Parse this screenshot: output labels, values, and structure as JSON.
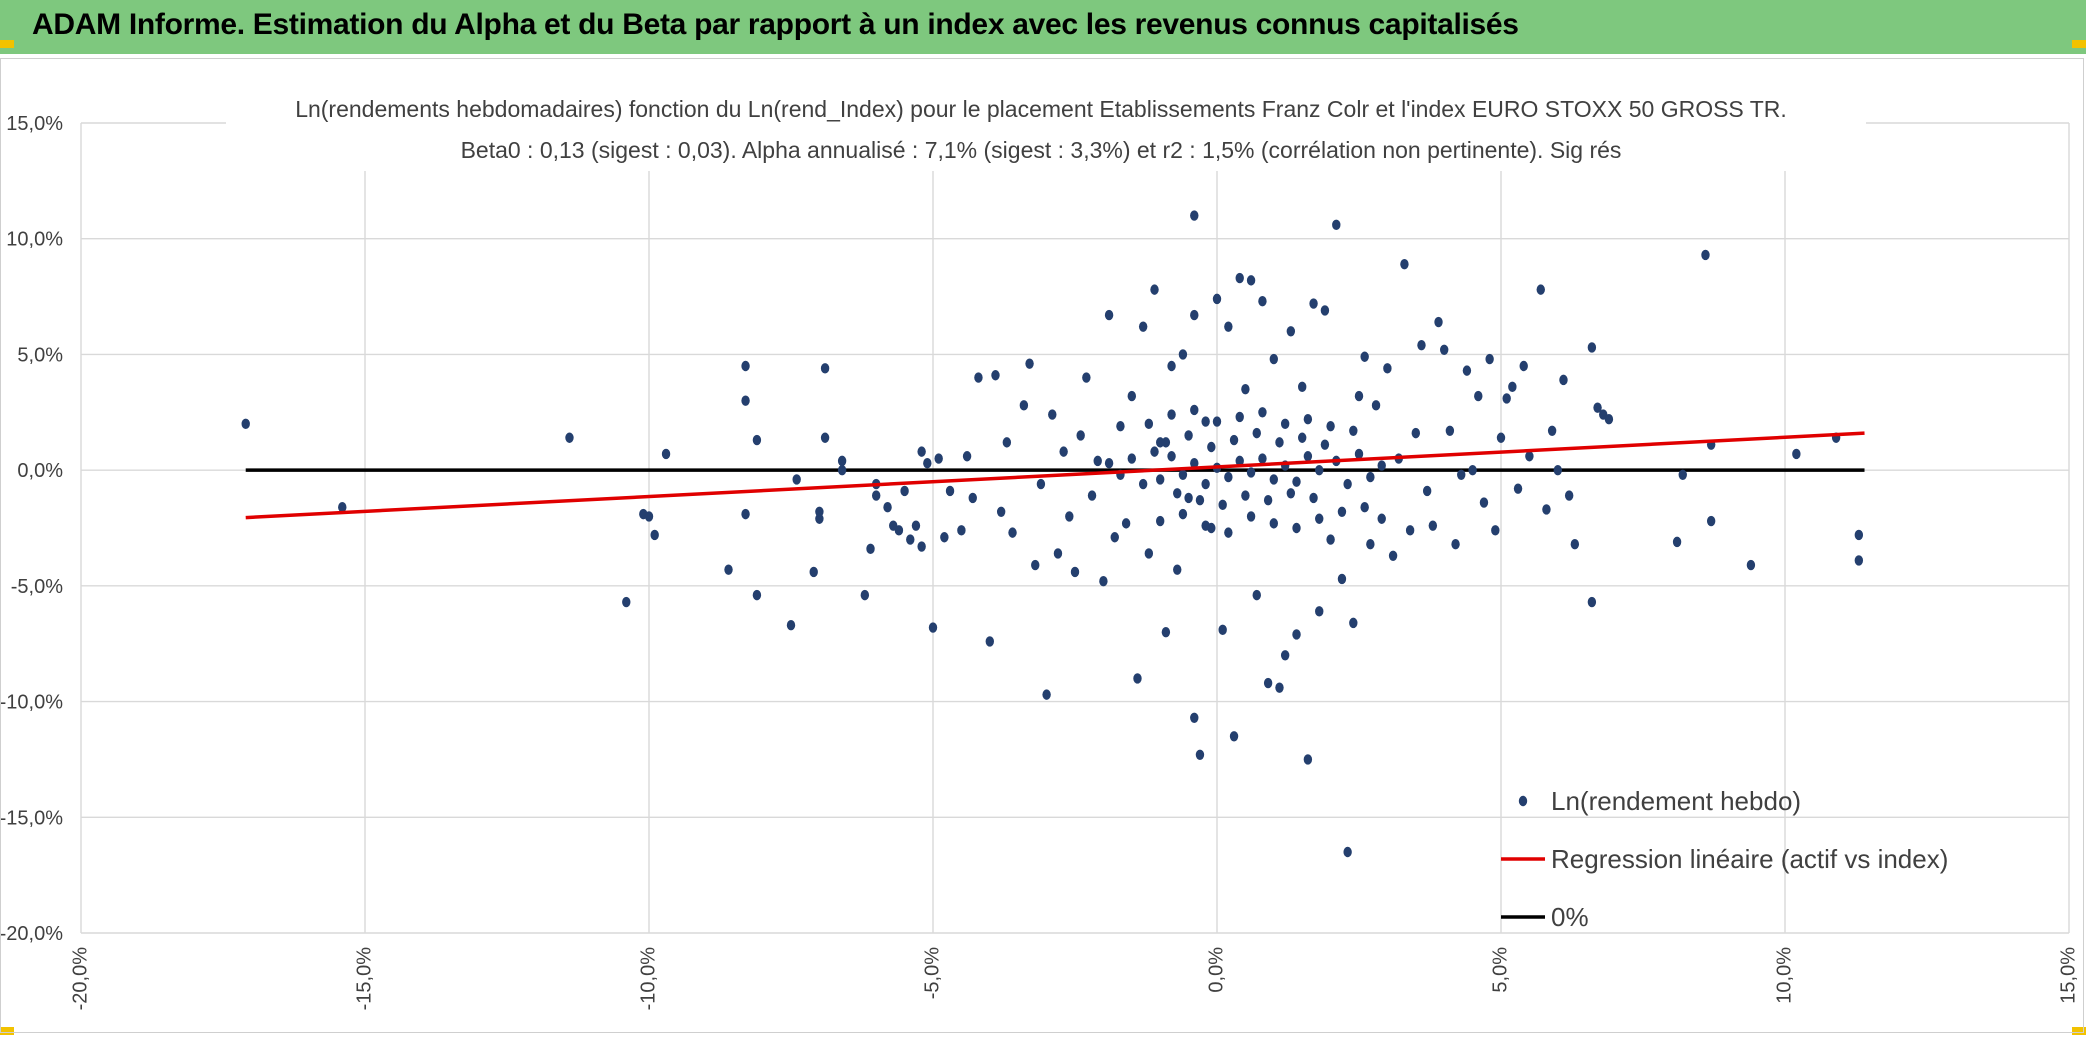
{
  "header": {
    "title": "ADAM Informe. Estimation du Alpha et du Beta par rapport à un index avec les revenus connus capitalisés"
  },
  "colors": {
    "header_bg": "#7ec87e",
    "points": "#243f6e",
    "regression": "#e00000",
    "zero_line": "#000000",
    "grid": "#d9d9d9",
    "text": "#404040"
  },
  "chart_data": {
    "type": "scatter",
    "title": "Ln(rendements hebdomadaires) fonction du Ln(rend_Index) pour le placement Etablissements Franz Colr et l'index EURO STOXX 50 GROSS TR.",
    "subtitle": "Beta0 : 0,13 (sigest : 0,03). Alpha annualisé : 7,1% (sigest : 3,3%) et r2 : 1,5% (corrélation non pertinente). Sig rés",
    "xlim": [
      -0.2,
      0.15
    ],
    "ylim": [
      -0.2,
      0.15
    ],
    "grid": true,
    "legend_position": "bottom-right",
    "x_ticks": [
      {
        "value": -0.2,
        "label": "-20,0%"
      },
      {
        "value": -0.15,
        "label": "-15,0%"
      },
      {
        "value": -0.1,
        "label": "-10,0%"
      },
      {
        "value": -0.05,
        "label": "-5,0%"
      },
      {
        "value": 0.0,
        "label": "0,0%"
      },
      {
        "value": 0.05,
        "label": "5,0%"
      },
      {
        "value": 0.1,
        "label": "10,0%"
      },
      {
        "value": 0.15,
        "label": "15,0%"
      }
    ],
    "y_ticks": [
      {
        "value": 0.15,
        "label": "15,0%"
      },
      {
        "value": 0.1,
        "label": "10,0%"
      },
      {
        "value": 0.05,
        "label": "5,0%"
      },
      {
        "value": 0.0,
        "label": "0,0%"
      },
      {
        "value": -0.05,
        "label": "-5,0%"
      },
      {
        "value": -0.1,
        "label": "-10,0%"
      },
      {
        "value": -0.15,
        "label": "-15,0%"
      },
      {
        "value": -0.2,
        "label": "-20,0%"
      }
    ],
    "series": [
      {
        "name": "Ln(rendement hebdo)",
        "kind": "points",
        "points": [
          [
            -0.171,
            0.02
          ],
          [
            -0.154,
            -0.016
          ],
          [
            -0.114,
            0.014
          ],
          [
            -0.104,
            -0.057
          ],
          [
            -0.101,
            -0.019
          ],
          [
            -0.1,
            -0.02
          ],
          [
            -0.099,
            -0.028
          ],
          [
            -0.097,
            0.007
          ],
          [
            -0.086,
            -0.043
          ],
          [
            -0.083,
            0.045
          ],
          [
            -0.083,
            0.03
          ],
          [
            -0.083,
            -0.019
          ],
          [
            -0.081,
            0.013
          ],
          [
            -0.081,
            -0.054
          ],
          [
            -0.075,
            -0.067
          ],
          [
            -0.074,
            -0.004
          ],
          [
            -0.071,
            -0.044
          ],
          [
            -0.07,
            -0.021
          ],
          [
            -0.07,
            -0.018
          ],
          [
            -0.069,
            0.044
          ],
          [
            -0.069,
            0.014
          ],
          [
            -0.066,
            0.004
          ],
          [
            -0.066,
            0.0
          ],
          [
            -0.062,
            -0.054
          ],
          [
            -0.061,
            -0.034
          ],
          [
            -0.06,
            -0.011
          ],
          [
            -0.06,
            -0.006
          ],
          [
            -0.058,
            -0.016
          ],
          [
            -0.057,
            -0.024
          ],
          [
            -0.056,
            -0.026
          ],
          [
            -0.055,
            -0.009
          ],
          [
            -0.054,
            -0.03
          ],
          [
            -0.053,
            -0.024
          ],
          [
            -0.052,
            0.008
          ],
          [
            -0.052,
            -0.033
          ],
          [
            -0.051,
            0.003
          ],
          [
            -0.05,
            -0.068
          ],
          [
            -0.049,
            0.005
          ],
          [
            -0.048,
            -0.029
          ],
          [
            -0.047,
            -0.009
          ],
          [
            -0.045,
            -0.026
          ],
          [
            -0.044,
            0.006
          ],
          [
            -0.043,
            -0.012
          ],
          [
            -0.042,
            0.04
          ],
          [
            -0.04,
            -0.074
          ],
          [
            -0.039,
            0.041
          ],
          [
            -0.038,
            -0.018
          ],
          [
            -0.037,
            0.012
          ],
          [
            -0.036,
            -0.027
          ],
          [
            -0.034,
            0.028
          ],
          [
            -0.033,
            0.046
          ],
          [
            -0.032,
            -0.041
          ],
          [
            -0.031,
            -0.006
          ],
          [
            -0.03,
            -0.097
          ],
          [
            -0.029,
            0.024
          ],
          [
            -0.028,
            -0.036
          ],
          [
            -0.027,
            0.008
          ],
          [
            -0.026,
            -0.02
          ],
          [
            -0.025,
            -0.044
          ],
          [
            -0.024,
            0.015
          ],
          [
            -0.023,
            0.04
          ],
          [
            -0.022,
            -0.011
          ],
          [
            -0.021,
            0.004
          ],
          [
            -0.02,
            -0.048
          ],
          [
            -0.019,
            0.067
          ],
          [
            -0.018,
            -0.029
          ],
          [
            -0.017,
            0.019
          ],
          [
            -0.016,
            -0.023
          ],
          [
            -0.015,
            0.032
          ],
          [
            -0.014,
            -0.09
          ],
          [
            -0.013,
            0.062
          ],
          [
            -0.012,
            -0.036
          ],
          [
            -0.011,
            0.078
          ],
          [
            -0.01,
            0.012
          ],
          [
            -0.009,
            -0.07
          ],
          [
            -0.008,
            0.045
          ],
          [
            -0.007,
            -0.043
          ],
          [
            -0.006,
            0.05
          ],
          [
            -0.005,
            -0.012
          ],
          [
            -0.004,
            0.067
          ],
          [
            -0.004,
            -0.107
          ],
          [
            -0.004,
            0.11
          ],
          [
            -0.003,
            -0.123
          ],
          [
            -0.002,
            0.021
          ],
          [
            -0.001,
            -0.025
          ],
          [
            0.0,
            0.074
          ],
          [
            0.001,
            -0.069
          ],
          [
            0.002,
            0.062
          ],
          [
            0.003,
            -0.115
          ],
          [
            0.004,
            0.083
          ],
          [
            0.005,
            0.035
          ],
          [
            0.006,
            0.082
          ],
          [
            0.007,
            -0.054
          ],
          [
            0.008,
            0.073
          ],
          [
            0.009,
            -0.092
          ],
          [
            0.01,
            0.048
          ],
          [
            0.011,
            -0.094
          ],
          [
            0.012,
            -0.08
          ],
          [
            0.013,
            0.06
          ],
          [
            0.014,
            -0.071
          ],
          [
            0.015,
            0.036
          ],
          [
            0.016,
            -0.125
          ],
          [
            0.017,
            0.072
          ],
          [
            0.018,
            -0.061
          ],
          [
            0.019,
            0.069
          ],
          [
            0.02,
            -0.03
          ],
          [
            0.021,
            0.106
          ],
          [
            0.022,
            -0.047
          ],
          [
            0.023,
            -0.165
          ],
          [
            0.024,
            -0.066
          ],
          [
            0.025,
            0.032
          ],
          [
            0.026,
            0.049
          ],
          [
            0.027,
            -0.032
          ],
          [
            0.028,
            0.028
          ],
          [
            0.029,
            -0.021
          ],
          [
            0.03,
            0.044
          ],
          [
            0.031,
            -0.037
          ],
          [
            0.032,
            0.005
          ],
          [
            0.033,
            0.089
          ],
          [
            0.034,
            -0.026
          ],
          [
            0.035,
            0.016
          ],
          [
            0.036,
            0.054
          ],
          [
            0.037,
            -0.009
          ],
          [
            0.038,
            -0.024
          ],
          [
            0.039,
            0.064
          ],
          [
            0.04,
            0.052
          ],
          [
            0.041,
            0.017
          ],
          [
            0.042,
            -0.032
          ],
          [
            0.043,
            -0.002
          ],
          [
            0.044,
            0.043
          ],
          [
            0.045,
            0.0
          ],
          [
            0.046,
            0.032
          ],
          [
            0.047,
            -0.014
          ],
          [
            0.048,
            0.048
          ],
          [
            0.049,
            -0.026
          ],
          [
            0.05,
            0.014
          ],
          [
            0.051,
            0.031
          ],
          [
            0.052,
            0.036
          ],
          [
            0.053,
            -0.008
          ],
          [
            0.054,
            0.045
          ],
          [
            0.055,
            0.006
          ],
          [
            0.057,
            0.078
          ],
          [
            0.058,
            -0.017
          ],
          [
            0.059,
            0.017
          ],
          [
            0.06,
            0.0
          ],
          [
            0.061,
            0.039
          ],
          [
            0.062,
            -0.011
          ],
          [
            0.063,
            -0.032
          ],
          [
            0.066,
            -0.057
          ],
          [
            0.067,
            0.027
          ],
          [
            0.068,
            0.024
          ],
          [
            0.069,
            0.022
          ],
          [
            0.081,
            -0.031
          ],
          [
            0.082,
            -0.002
          ],
          [
            0.086,
            0.093
          ],
          [
            0.087,
            -0.022
          ],
          [
            0.087,
            0.011
          ],
          [
            0.094,
            -0.041
          ],
          [
            0.102,
            0.007
          ],
          [
            0.109,
            0.014
          ],
          [
            0.113,
            -0.039
          ],
          [
            0.113,
            -0.028
          ],
          [
            0.066,
            0.053
          ],
          [
            -0.01,
            -0.004
          ],
          [
            -0.008,
            0.006
          ],
          [
            -0.006,
            -0.002
          ],
          [
            -0.004,
            0.003
          ],
          [
            -0.002,
            -0.006
          ],
          [
            0.0,
            0.001
          ],
          [
            0.002,
            -0.003
          ],
          [
            0.004,
            0.004
          ],
          [
            0.006,
            -0.001
          ],
          [
            0.008,
            0.005
          ],
          [
            0.01,
            -0.004
          ],
          [
            0.012,
            0.002
          ],
          [
            0.014,
            -0.005
          ],
          [
            0.016,
            0.006
          ],
          [
            0.018,
            0.0
          ],
          [
            -0.009,
            0.012
          ],
          [
            -0.007,
            -0.01
          ],
          [
            -0.005,
            0.015
          ],
          [
            -0.003,
            -0.013
          ],
          [
            -0.001,
            0.01
          ],
          [
            0.001,
            -0.015
          ],
          [
            0.003,
            0.013
          ],
          [
            0.005,
            -0.011
          ],
          [
            0.007,
            0.016
          ],
          [
            0.009,
            -0.013
          ],
          [
            0.011,
            0.012
          ],
          [
            0.013,
            -0.01
          ],
          [
            0.015,
            0.014
          ],
          [
            0.017,
            -0.012
          ],
          [
            0.019,
            0.011
          ],
          [
            -0.015,
            0.005
          ],
          [
            -0.013,
            -0.006
          ],
          [
            -0.011,
            0.008
          ],
          [
            -0.017,
            -0.002
          ],
          [
            -0.019,
            0.003
          ],
          [
            0.021,
            0.004
          ],
          [
            0.023,
            -0.006
          ],
          [
            0.025,
            0.007
          ],
          [
            0.027,
            -0.003
          ],
          [
            0.029,
            0.002
          ],
          [
            -0.012,
            0.02
          ],
          [
            -0.01,
            -0.022
          ],
          [
            -0.008,
            0.024
          ],
          [
            -0.006,
            -0.019
          ],
          [
            -0.004,
            0.026
          ],
          [
            -0.002,
            -0.024
          ],
          [
            0.0,
            0.021
          ],
          [
            0.002,
            -0.027
          ],
          [
            0.004,
            0.023
          ],
          [
            0.006,
            -0.02
          ],
          [
            0.008,
            0.025
          ],
          [
            0.01,
            -0.023
          ],
          [
            0.012,
            0.02
          ],
          [
            0.014,
            -0.025
          ],
          [
            0.016,
            0.022
          ],
          [
            0.018,
            -0.021
          ],
          [
            0.02,
            0.019
          ],
          [
            0.022,
            -0.018
          ],
          [
            0.024,
            0.017
          ],
          [
            0.026,
            -0.016
          ]
        ]
      },
      {
        "name": "Regression linéaire (actif vs index)",
        "kind": "line",
        "points": [
          [
            -0.171,
            -0.0205
          ],
          [
            0.114,
            0.016
          ]
        ]
      },
      {
        "name": "0%",
        "kind": "line",
        "points": [
          [
            -0.171,
            0.0
          ],
          [
            0.114,
            0.0
          ]
        ]
      }
    ]
  }
}
